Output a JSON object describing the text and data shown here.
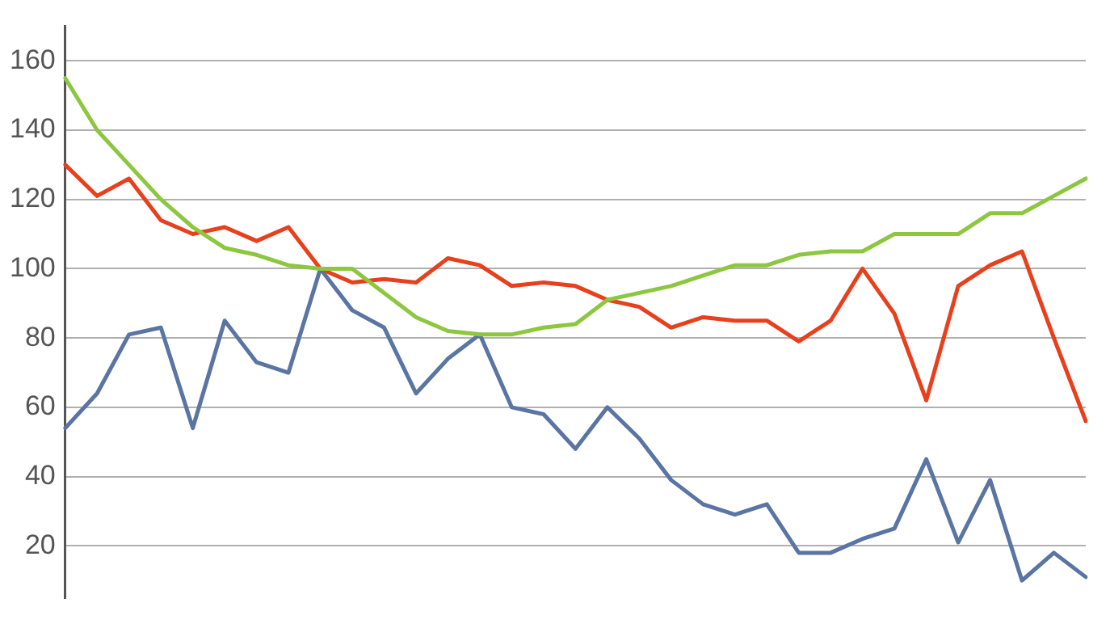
{
  "chart_data": {
    "type": "line",
    "categories": [
      null,
      null,
      null,
      null,
      null,
      null,
      null,
      null,
      null,
      null,
      null,
      null,
      null,
      null,
      null,
      null,
      null,
      null,
      null,
      null,
      null,
      null,
      null,
      null,
      null,
      null,
      null,
      null,
      null,
      null,
      null,
      null,
      null
    ],
    "series": [
      {
        "color": "#8dc63f",
        "values": [
          155,
          140,
          130,
          120,
          112,
          106,
          104,
          101,
          100,
          100,
          93,
          86,
          82,
          81,
          81,
          83,
          84,
          91,
          93,
          95,
          98,
          101,
          101,
          104,
          105,
          105,
          110,
          110,
          110,
          116,
          116,
          121,
          126
        ]
      },
      {
        "color": "#e8401c",
        "values": [
          130,
          121,
          126,
          114,
          110,
          112,
          108,
          112,
          100,
          96,
          97,
          96,
          103,
          101,
          95,
          96,
          95,
          91,
          89,
          83,
          86,
          85,
          85,
          79,
          85,
          100,
          87,
          62,
          95,
          101,
          105,
          80,
          56
        ]
      },
      {
        "color": "#5a74a3",
        "values": [
          54,
          64,
          81,
          83,
          54,
          85,
          73,
          70,
          100,
          88,
          83,
          64,
          74,
          81,
          60,
          58,
          48,
          60,
          51,
          39,
          32,
          29,
          32,
          18,
          18,
          22,
          25,
          45,
          21,
          39,
          10,
          18,
          11
        ]
      }
    ],
    "ylim": [
      5,
      170
    ],
    "yticks": [
      20,
      40,
      60,
      80,
      100,
      120,
      140,
      160
    ],
    "grid": "y",
    "legend": false,
    "tick_labels": "y",
    "marker": "none",
    "line_style": "solid"
  }
}
